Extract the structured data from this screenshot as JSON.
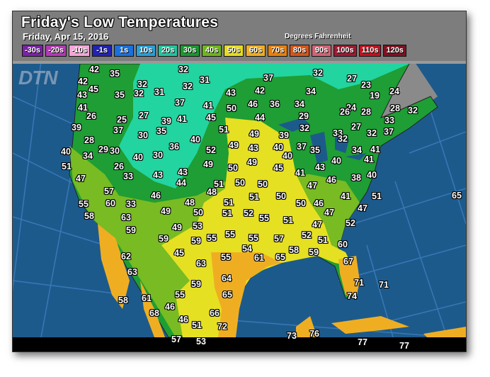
{
  "title": "Friday's Low Temperatures",
  "subtitle": "Friday, Apr 15, 2016",
  "units_label": "Degrees Fahrenheit",
  "logo": "DTN",
  "legend": [
    {
      "label": "-30s",
      "color": "#7a22a6"
    },
    {
      "label": "-20s",
      "color": "#b23ab4"
    },
    {
      "label": "-10s",
      "color": "#f2a6d6"
    },
    {
      "label": "-1s",
      "color": "#2222b4"
    },
    {
      "label": "1s",
      "color": "#1a70dc"
    },
    {
      "label": "10s",
      "color": "#2a9fd6"
    },
    {
      "label": "20s",
      "color": "#22c49e"
    },
    {
      "label": "30s",
      "color": "#1c9630"
    },
    {
      "label": "40s",
      "color": "#6fb51e"
    },
    {
      "label": "50s",
      "color": "#e6dc1e"
    },
    {
      "label": "60s",
      "color": "#efae22"
    },
    {
      "label": "70s",
      "color": "#e6800e"
    },
    {
      "label": "80s",
      "color": "#d4561a"
    },
    {
      "label": "90s",
      "color": "#d06474"
    },
    {
      "label": "100s",
      "color": "#9e1a32"
    },
    {
      "label": "110s",
      "color": "#c0121e"
    },
    {
      "label": "120s",
      "color": "#7e1222"
    }
  ],
  "colors": {
    "ocean": "#1d5a8c",
    "land_20s": "#22d4a0",
    "land_30s": "#1e9e34",
    "land_40s": "#78bb22",
    "land_50s": "#e6e022",
    "land_60s": "#f0a822",
    "canada": "#8a8a8a"
  },
  "temperatures": [
    "42",
    "35",
    "32",
    "37",
    "32",
    "27",
    "23",
    "42",
    "45",
    "32",
    "31",
    "32",
    "24",
    "43",
    "35",
    "32",
    "31",
    "43",
    "42",
    "34",
    "19",
    "41",
    "37",
    "41",
    "50",
    "46",
    "36",
    "34",
    "24",
    "28",
    "28",
    "32",
    "26",
    "25",
    "27",
    "39",
    "41",
    "45",
    "44",
    "29",
    "26",
    "33",
    "39",
    "37",
    "30",
    "35",
    "51",
    "49",
    "39",
    "32",
    "27",
    "33",
    "32",
    "32",
    "37",
    "28",
    "40",
    "36",
    "49",
    "43",
    "40",
    "37",
    "35",
    "34",
    "41",
    "40",
    "29",
    "30",
    "40",
    "30",
    "52",
    "40",
    "43",
    "40",
    "41",
    "34",
    "51",
    "26",
    "33",
    "43",
    "43",
    "44",
    "49",
    "50",
    "49",
    "45",
    "41",
    "46",
    "38",
    "40",
    "47",
    "51",
    "50",
    "50",
    "48",
    "47",
    "57",
    "46",
    "51",
    "51",
    "50",
    "41",
    "51",
    "65",
    "55",
    "60",
    "33",
    "48",
    "50",
    "51",
    "52",
    "55",
    "50",
    "46",
    "47",
    "47",
    "58",
    "63",
    "49",
    "51",
    "52",
    "59",
    "59",
    "49",
    "53",
    "59",
    "55",
    "55",
    "55",
    "57",
    "47",
    "52",
    "51",
    "62",
    "45",
    "55",
    "54",
    "61",
    "65",
    "58",
    "59",
    "60",
    "63",
    "63",
    "67",
    "64",
    "59",
    "71",
    "71",
    "58",
    "61",
    "55",
    "65",
    "74",
    "46",
    "68",
    "66",
    "46",
    "51",
    "72",
    "73",
    "76",
    "57",
    "53",
    "77",
    "77"
  ]
}
